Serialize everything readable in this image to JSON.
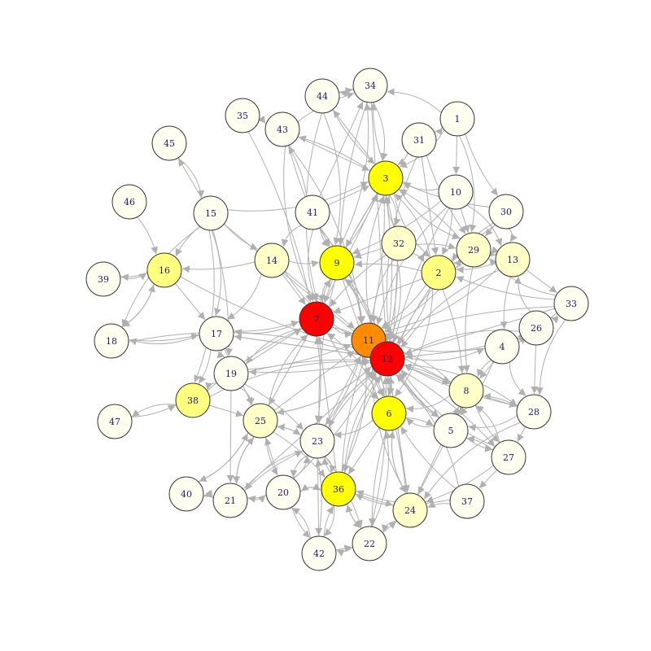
{
  "graph": {
    "node_fill_colors": {
      "red": "#ff0000",
      "orange": "#ff8c00",
      "yellow": "#ffff00",
      "yellow_medium": "#ffff80",
      "yellow_light": "#ffffc8",
      "cream": "#fffff0"
    },
    "edge_color": "#b0b0b0",
    "node_stroke_color": "#333333",
    "label_color": "#1a1a6e",
    "nodes": [
      {
        "id": "1",
        "fill": "cream"
      },
      {
        "id": "2",
        "fill": "yellow_medium"
      },
      {
        "id": "3",
        "fill": "yellow"
      },
      {
        "id": "4",
        "fill": "cream"
      },
      {
        "id": "5",
        "fill": "cream"
      },
      {
        "id": "6",
        "fill": "yellow"
      },
      {
        "id": "7",
        "fill": "red"
      },
      {
        "id": "8",
        "fill": "yellow_light"
      },
      {
        "id": "9",
        "fill": "yellow"
      },
      {
        "id": "10",
        "fill": "cream"
      },
      {
        "id": "11",
        "fill": "orange"
      },
      {
        "id": "12",
        "fill": "red"
      },
      {
        "id": "13",
        "fill": "yellow_light"
      },
      {
        "id": "14",
        "fill": "yellow_light"
      },
      {
        "id": "15",
        "fill": "cream"
      },
      {
        "id": "16",
        "fill": "yellow_medium"
      },
      {
        "id": "17",
        "fill": "cream"
      },
      {
        "id": "18",
        "fill": "cream"
      },
      {
        "id": "19",
        "fill": "cream"
      },
      {
        "id": "20",
        "fill": "cream"
      },
      {
        "id": "21",
        "fill": "cream"
      },
      {
        "id": "22",
        "fill": "cream"
      },
      {
        "id": "23",
        "fill": "cream"
      },
      {
        "id": "24",
        "fill": "yellow_light"
      },
      {
        "id": "25",
        "fill": "yellow_light"
      },
      {
        "id": "26",
        "fill": "cream"
      },
      {
        "id": "27",
        "fill": "cream"
      },
      {
        "id": "28",
        "fill": "cream"
      },
      {
        "id": "29",
        "fill": "yellow_light"
      },
      {
        "id": "30",
        "fill": "cream"
      },
      {
        "id": "31",
        "fill": "cream"
      },
      {
        "id": "32",
        "fill": "yellow_light"
      },
      {
        "id": "33",
        "fill": "cream"
      },
      {
        "id": "34",
        "fill": "cream"
      },
      {
        "id": "35",
        "fill": "cream"
      },
      {
        "id": "36",
        "fill": "yellow"
      },
      {
        "id": "37",
        "fill": "cream"
      },
      {
        "id": "38",
        "fill": "yellow_medium"
      },
      {
        "id": "39",
        "fill": "cream"
      },
      {
        "id": "40",
        "fill": "cream"
      },
      {
        "id": "41",
        "fill": "cream"
      },
      {
        "id": "42",
        "fill": "cream"
      },
      {
        "id": "43",
        "fill": "cream"
      },
      {
        "id": "44",
        "fill": "cream"
      },
      {
        "id": "45",
        "fill": "cream"
      },
      {
        "id": "46",
        "fill": "cream"
      },
      {
        "id": "47",
        "fill": "cream"
      }
    ],
    "edges": [
      [
        "1",
        "3"
      ],
      [
        "1",
        "31"
      ],
      [
        "1",
        "10"
      ],
      [
        "1",
        "30"
      ],
      [
        "1",
        "34"
      ],
      [
        "1",
        "29"
      ],
      [
        "31",
        "3"
      ],
      [
        "31",
        "2"
      ],
      [
        "31",
        "29"
      ],
      [
        "31",
        "12"
      ],
      [
        "10",
        "3"
      ],
      [
        "10",
        "2"
      ],
      [
        "10",
        "29"
      ],
      [
        "10",
        "12"
      ],
      [
        "10",
        "11"
      ],
      [
        "10",
        "13"
      ],
      [
        "10",
        "9"
      ],
      [
        "30",
        "29"
      ],
      [
        "30",
        "2"
      ],
      [
        "30",
        "12"
      ],
      [
        "30",
        "13"
      ],
      [
        "30",
        "3"
      ],
      [
        "44",
        "34"
      ],
      [
        "44",
        "3"
      ],
      [
        "44",
        "7"
      ],
      [
        "44",
        "9"
      ],
      [
        "43",
        "34"
      ],
      [
        "43",
        "3"
      ],
      [
        "43",
        "9"
      ],
      [
        "43",
        "7"
      ],
      [
        "43",
        "11"
      ],
      [
        "35",
        "7"
      ],
      [
        "15",
        "45"
      ],
      [
        "15",
        "16"
      ],
      [
        "15",
        "18"
      ],
      [
        "15",
        "17"
      ],
      [
        "15",
        "19"
      ],
      [
        "15",
        "12"
      ],
      [
        "15",
        "14"
      ],
      [
        "15",
        "3"
      ],
      [
        "15",
        "38"
      ],
      [
        "46",
        "16"
      ],
      [
        "41",
        "3"
      ],
      [
        "41",
        "9"
      ],
      [
        "41",
        "7"
      ],
      [
        "41",
        "11"
      ],
      [
        "41",
        "12"
      ],
      [
        "41",
        "34"
      ],
      [
        "41",
        "43"
      ],
      [
        "41",
        "14"
      ],
      [
        "32",
        "3"
      ],
      [
        "32",
        "2"
      ],
      [
        "32",
        "9"
      ],
      [
        "32",
        "7"
      ],
      [
        "32",
        "11"
      ],
      [
        "32",
        "12"
      ],
      [
        "32",
        "29"
      ],
      [
        "32",
        "6"
      ],
      [
        "29",
        "3"
      ],
      [
        "29",
        "12"
      ],
      [
        "29",
        "11"
      ],
      [
        "29",
        "2"
      ],
      [
        "29",
        "13"
      ],
      [
        "29",
        "8"
      ],
      [
        "13",
        "12"
      ],
      [
        "13",
        "11"
      ],
      [
        "13",
        "2"
      ],
      [
        "13",
        "33"
      ],
      [
        "13",
        "4"
      ],
      [
        "13",
        "29"
      ],
      [
        "2",
        "12"
      ],
      [
        "2",
        "11"
      ],
      [
        "2",
        "7"
      ],
      [
        "2",
        "9"
      ],
      [
        "2",
        "3"
      ],
      [
        "2",
        "6"
      ],
      [
        "2",
        "8"
      ],
      [
        "14",
        "7"
      ],
      [
        "14",
        "9"
      ],
      [
        "14",
        "12"
      ],
      [
        "14",
        "17"
      ],
      [
        "14",
        "16"
      ],
      [
        "14",
        "11"
      ],
      [
        "9",
        "3"
      ],
      [
        "9",
        "7"
      ],
      [
        "9",
        "11"
      ],
      [
        "9",
        "12"
      ],
      [
        "9",
        "6"
      ],
      [
        "9",
        "23"
      ],
      [
        "9",
        "34"
      ],
      [
        "16",
        "18"
      ],
      [
        "16",
        "39"
      ],
      [
        "16",
        "17"
      ],
      [
        "16",
        "12"
      ],
      [
        "7",
        "11"
      ],
      [
        "7",
        "12"
      ],
      [
        "7",
        "23"
      ],
      [
        "7",
        "25"
      ],
      [
        "7",
        "6"
      ],
      [
        "7",
        "19"
      ],
      [
        "7",
        "17"
      ],
      [
        "7",
        "9"
      ],
      [
        "7",
        "3"
      ],
      [
        "11",
        "12"
      ],
      [
        "11",
        "6"
      ],
      [
        "11",
        "3"
      ],
      [
        "11",
        "23"
      ],
      [
        "11",
        "8"
      ],
      [
        "11",
        "5"
      ],
      [
        "11",
        "24"
      ],
      [
        "11",
        "36"
      ],
      [
        "12",
        "6"
      ],
      [
        "12",
        "8"
      ],
      [
        "12",
        "5"
      ],
      [
        "12",
        "4"
      ],
      [
        "12",
        "28"
      ],
      [
        "12",
        "27"
      ],
      [
        "12",
        "24"
      ],
      [
        "12",
        "36"
      ],
      [
        "12",
        "23"
      ],
      [
        "12",
        "25"
      ],
      [
        "12",
        "19"
      ],
      [
        "12",
        "17"
      ],
      [
        "12",
        "3"
      ],
      [
        "12",
        "9"
      ],
      [
        "33",
        "26"
      ],
      [
        "33",
        "4"
      ],
      [
        "33",
        "12"
      ],
      [
        "33",
        "11"
      ],
      [
        "33",
        "28"
      ],
      [
        "33",
        "29"
      ],
      [
        "33",
        "2"
      ],
      [
        "26",
        "28"
      ],
      [
        "26",
        "8"
      ],
      [
        "26",
        "12"
      ],
      [
        "26",
        "13"
      ],
      [
        "26",
        "4"
      ],
      [
        "4",
        "12"
      ],
      [
        "4",
        "8"
      ],
      [
        "4",
        "28"
      ],
      [
        "4",
        "11"
      ],
      [
        "4",
        "5"
      ],
      [
        "17",
        "12"
      ],
      [
        "17",
        "7"
      ],
      [
        "17",
        "19"
      ],
      [
        "17",
        "18"
      ],
      [
        "17",
        "38"
      ],
      [
        "17",
        "25"
      ],
      [
        "18",
        "17"
      ],
      [
        "18",
        "16"
      ],
      [
        "18",
        "12"
      ],
      [
        "19",
        "12"
      ],
      [
        "19",
        "7"
      ],
      [
        "19",
        "11"
      ],
      [
        "19",
        "38"
      ],
      [
        "19",
        "25"
      ],
      [
        "19",
        "23"
      ],
      [
        "19",
        "21"
      ],
      [
        "8",
        "12"
      ],
      [
        "8",
        "11"
      ],
      [
        "8",
        "6"
      ],
      [
        "8",
        "5"
      ],
      [
        "8",
        "28"
      ],
      [
        "8",
        "27"
      ],
      [
        "38",
        "47"
      ],
      [
        "38",
        "12"
      ],
      [
        "38",
        "7"
      ],
      [
        "38",
        "25"
      ],
      [
        "47",
        "38"
      ],
      [
        "25",
        "12"
      ],
      [
        "25",
        "7"
      ],
      [
        "25",
        "23"
      ],
      [
        "25",
        "11"
      ],
      [
        "25",
        "20"
      ],
      [
        "25",
        "21"
      ],
      [
        "25",
        "40"
      ],
      [
        "25",
        "36"
      ],
      [
        "6",
        "12"
      ],
      [
        "6",
        "11"
      ],
      [
        "6",
        "24"
      ],
      [
        "6",
        "23"
      ],
      [
        "6",
        "5"
      ],
      [
        "6",
        "36"
      ],
      [
        "6",
        "22"
      ],
      [
        "6",
        "7"
      ],
      [
        "5",
        "12"
      ],
      [
        "5",
        "11"
      ],
      [
        "5",
        "24"
      ],
      [
        "5",
        "27"
      ],
      [
        "5",
        "8"
      ],
      [
        "5",
        "6"
      ],
      [
        "28",
        "12"
      ],
      [
        "28",
        "27"
      ],
      [
        "28",
        "8"
      ],
      [
        "28",
        "24"
      ],
      [
        "28",
        "5"
      ],
      [
        "23",
        "12"
      ],
      [
        "23",
        "11"
      ],
      [
        "23",
        "7"
      ],
      [
        "23",
        "20"
      ],
      [
        "23",
        "36"
      ],
      [
        "23",
        "22"
      ],
      [
        "23",
        "42"
      ],
      [
        "23",
        "25"
      ],
      [
        "23",
        "21"
      ],
      [
        "27",
        "12"
      ],
      [
        "27",
        "24"
      ],
      [
        "27",
        "37"
      ],
      [
        "27",
        "5"
      ],
      [
        "27",
        "8"
      ],
      [
        "36",
        "12"
      ],
      [
        "36",
        "11"
      ],
      [
        "36",
        "24"
      ],
      [
        "36",
        "22"
      ],
      [
        "36",
        "20"
      ],
      [
        "36",
        "42"
      ],
      [
        "36",
        "23"
      ],
      [
        "36",
        "7"
      ],
      [
        "37",
        "24"
      ],
      [
        "37",
        "12"
      ],
      [
        "37",
        "36"
      ],
      [
        "37",
        "6"
      ],
      [
        "24",
        "12"
      ],
      [
        "24",
        "11"
      ],
      [
        "24",
        "22"
      ],
      [
        "24",
        "6"
      ],
      [
        "24",
        "36"
      ],
      [
        "24",
        "8"
      ],
      [
        "20",
        "12"
      ],
      [
        "20",
        "23"
      ],
      [
        "20",
        "36"
      ],
      [
        "20",
        "21"
      ],
      [
        "20",
        "25"
      ],
      [
        "20",
        "42"
      ],
      [
        "21",
        "20"
      ],
      [
        "21",
        "25"
      ],
      [
        "21",
        "23"
      ],
      [
        "21",
        "12"
      ],
      [
        "21",
        "40"
      ],
      [
        "40",
        "25"
      ],
      [
        "40",
        "21"
      ],
      [
        "22",
        "36"
      ],
      [
        "22",
        "24"
      ],
      [
        "22",
        "12"
      ],
      [
        "22",
        "6"
      ],
      [
        "22",
        "42"
      ],
      [
        "42",
        "36"
      ],
      [
        "42",
        "22"
      ],
      [
        "42",
        "23"
      ],
      [
        "42",
        "20"
      ],
      [
        "3",
        "12"
      ],
      [
        "3",
        "11"
      ],
      [
        "3",
        "9"
      ],
      [
        "3",
        "7"
      ],
      [
        "3",
        "2"
      ],
      [
        "3",
        "32"
      ],
      [
        "3",
        "34"
      ],
      [
        "3",
        "44"
      ],
      [
        "3",
        "43"
      ],
      [
        "3",
        "29"
      ],
      [
        "34",
        "3"
      ],
      [
        "34",
        "44"
      ],
      [
        "34",
        "12"
      ],
      [
        "34",
        "9"
      ],
      [
        "39",
        "16"
      ],
      [
        "45",
        "15"
      ],
      [
        "35",
        "43"
      ]
    ]
  }
}
